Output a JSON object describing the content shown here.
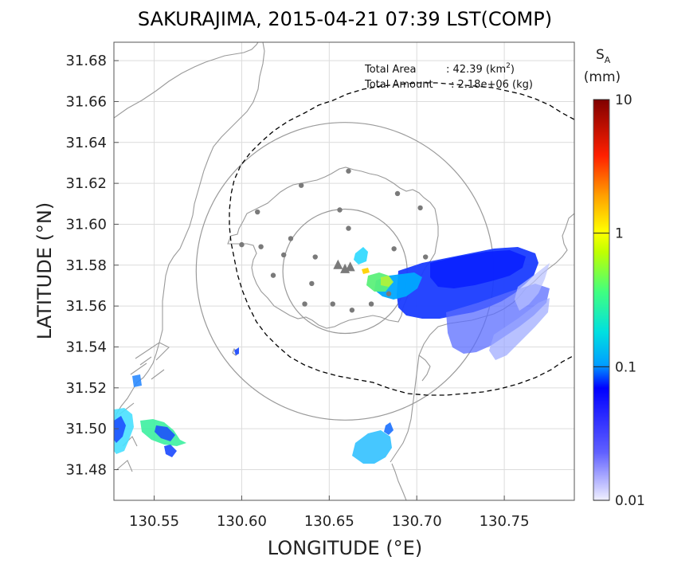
{
  "title": "SAKURAJIMA, 2015-04-21 07:39 LST(COMP)",
  "map": {
    "xlabel": "LONGITUDE (°E)",
    "ylabel": "LATITUDE (°N)",
    "xlim": [
      130.527,
      130.79
    ],
    "ylim": [
      31.465,
      31.689
    ],
    "x_ticks": [
      "130.55",
      "130.60",
      "130.65",
      "130.70",
      "130.75"
    ],
    "y_ticks": [
      "31.68",
      "31.66",
      "31.64",
      "31.62",
      "31.60",
      "31.58",
      "31.56",
      "31.54",
      "31.52",
      "31.50",
      "31.48"
    ],
    "x_tick_values": [
      130.55,
      130.6,
      130.65,
      130.7,
      130.75
    ],
    "y_tick_values": [
      31.68,
      31.66,
      31.64,
      31.62,
      31.6,
      31.58,
      31.56,
      31.54,
      31.52,
      31.5,
      31.48
    ],
    "grid": true,
    "station_points": [
      [
        130.661,
        31.626
      ],
      [
        130.634,
        31.619
      ],
      [
        130.689,
        31.615
      ],
      [
        130.702,
        31.608
      ],
      [
        130.656,
        31.607
      ],
      [
        130.609,
        31.606
      ],
      [
        130.661,
        31.598
      ],
      [
        130.628,
        31.593
      ],
      [
        130.6,
        31.59
      ],
      [
        130.611,
        31.589
      ],
      [
        130.624,
        31.585
      ],
      [
        130.642,
        31.584
      ],
      [
        130.687,
        31.588
      ],
      [
        130.705,
        31.584
      ],
      [
        130.618,
        31.575
      ],
      [
        130.64,
        31.571
      ],
      [
        130.636,
        31.561
      ],
      [
        130.652,
        31.561
      ],
      [
        130.663,
        31.558
      ],
      [
        130.674,
        31.561
      ],
      [
        130.684,
        31.566
      ]
    ],
    "summit_triangles": [
      [
        130.655,
        31.58
      ],
      [
        130.659,
        31.578
      ],
      [
        130.662,
        31.579
      ]
    ],
    "range_circles": [
      {
        "center": [
          130.659,
          31.577
        ],
        "radius_deg": 0.085
      },
      {
        "center": [
          130.659,
          31.577
        ],
        "radius_deg": 0.0355
      }
    ]
  },
  "stats": {
    "area_label": "Total Area",
    "area_value": ": 42.39 (km",
    "area_unit_sup": "2",
    "area_unit_close": ")",
    "amount_label": "Total Amount",
    "amount_value": ": 2.18e+06 (kg)"
  },
  "colorbar": {
    "symbol": "S",
    "symbol_sub": "A",
    "unit": "(mm)",
    "tick_labels": [
      "10",
      "1",
      "0.1",
      "0.01"
    ],
    "scale": "log",
    "range": [
      0.01,
      10
    ],
    "colors": [
      "#f0f0ff",
      "#0000ff",
      "#00c8ff",
      "#50ff50",
      "#ffff00",
      "#ff8000",
      "#ff0000",
      "#800000"
    ]
  }
}
